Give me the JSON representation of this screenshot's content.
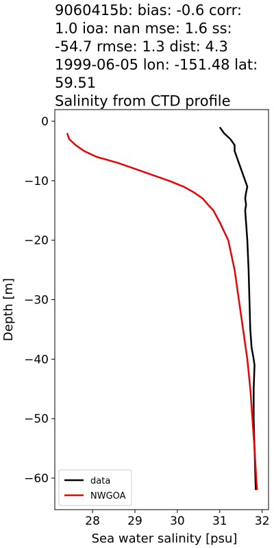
{
  "chart_data": {
    "type": "line",
    "title": [
      "9060415b: bias: -0.6  corr:",
      "1.0  ioa: nan  mse: 1.6  ss:",
      "-54.7  rmse: 1.3  dist: 4.3",
      "1999-06-05 lon: -151.48 lat:",
      "59.51",
      "Salinity from CTD profile"
    ],
    "xlabel": "Sea water salinity [psu]",
    "ylabel": "Depth [m]",
    "xlim": [
      27.11,
      32.15
    ],
    "ylim": [
      -65.3,
      1.96
    ],
    "xticks": [
      28,
      29,
      30,
      31,
      32
    ],
    "yticks": [
      {
        "value": 0,
        "label": "0"
      },
      {
        "value": -10,
        "label": "−10"
      },
      {
        "value": -20,
        "label": "−20"
      },
      {
        "value": -30,
        "label": "−30"
      },
      {
        "value": -40,
        "label": "−40"
      },
      {
        "value": -50,
        "label": "−50"
      },
      {
        "value": -60,
        "label": "−60"
      }
    ],
    "legend": "lower left",
    "series": [
      {
        "name": "data",
        "color": "#000000",
        "x": [
          31.0,
          31.1,
          31.25,
          31.35,
          31.35,
          31.4,
          31.45,
          31.5,
          31.55,
          31.6,
          31.65,
          31.62,
          31.6,
          31.62,
          31.6,
          31.62,
          31.65,
          31.68,
          31.7,
          31.72,
          31.75,
          31.8,
          31.82,
          31.8,
          31.8,
          31.82,
          31.84,
          31.85
        ],
        "values": [
          -1,
          -2,
          -3,
          -4,
          -5,
          -6,
          -7,
          -8,
          -9,
          -10,
          -11,
          -12,
          -13,
          -14,
          -15,
          -17,
          -20,
          -25,
          -30,
          -35,
          -38,
          -40,
          -41,
          -45,
          -50,
          -55,
          -60,
          -62
        ]
      },
      {
        "name": "NWGOA",
        "color": "#ee0000",
        "x": [
          27.4,
          27.45,
          27.6,
          27.8,
          28.1,
          28.6,
          29.0,
          29.4,
          29.8,
          30.15,
          30.4,
          30.6,
          30.72,
          30.85,
          31.0,
          31.2,
          31.35,
          31.45,
          31.55,
          31.65,
          31.72,
          31.77,
          31.82,
          31.86,
          31.88
        ],
        "values": [
          -2,
          -3,
          -4,
          -5,
          -6,
          -7,
          -8,
          -9,
          -10,
          -11,
          -12,
          -13,
          -14,
          -15,
          -17,
          -20,
          -25,
          -30,
          -35,
          -40,
          -45,
          -50,
          -55,
          -60,
          -62
        ]
      }
    ]
  }
}
